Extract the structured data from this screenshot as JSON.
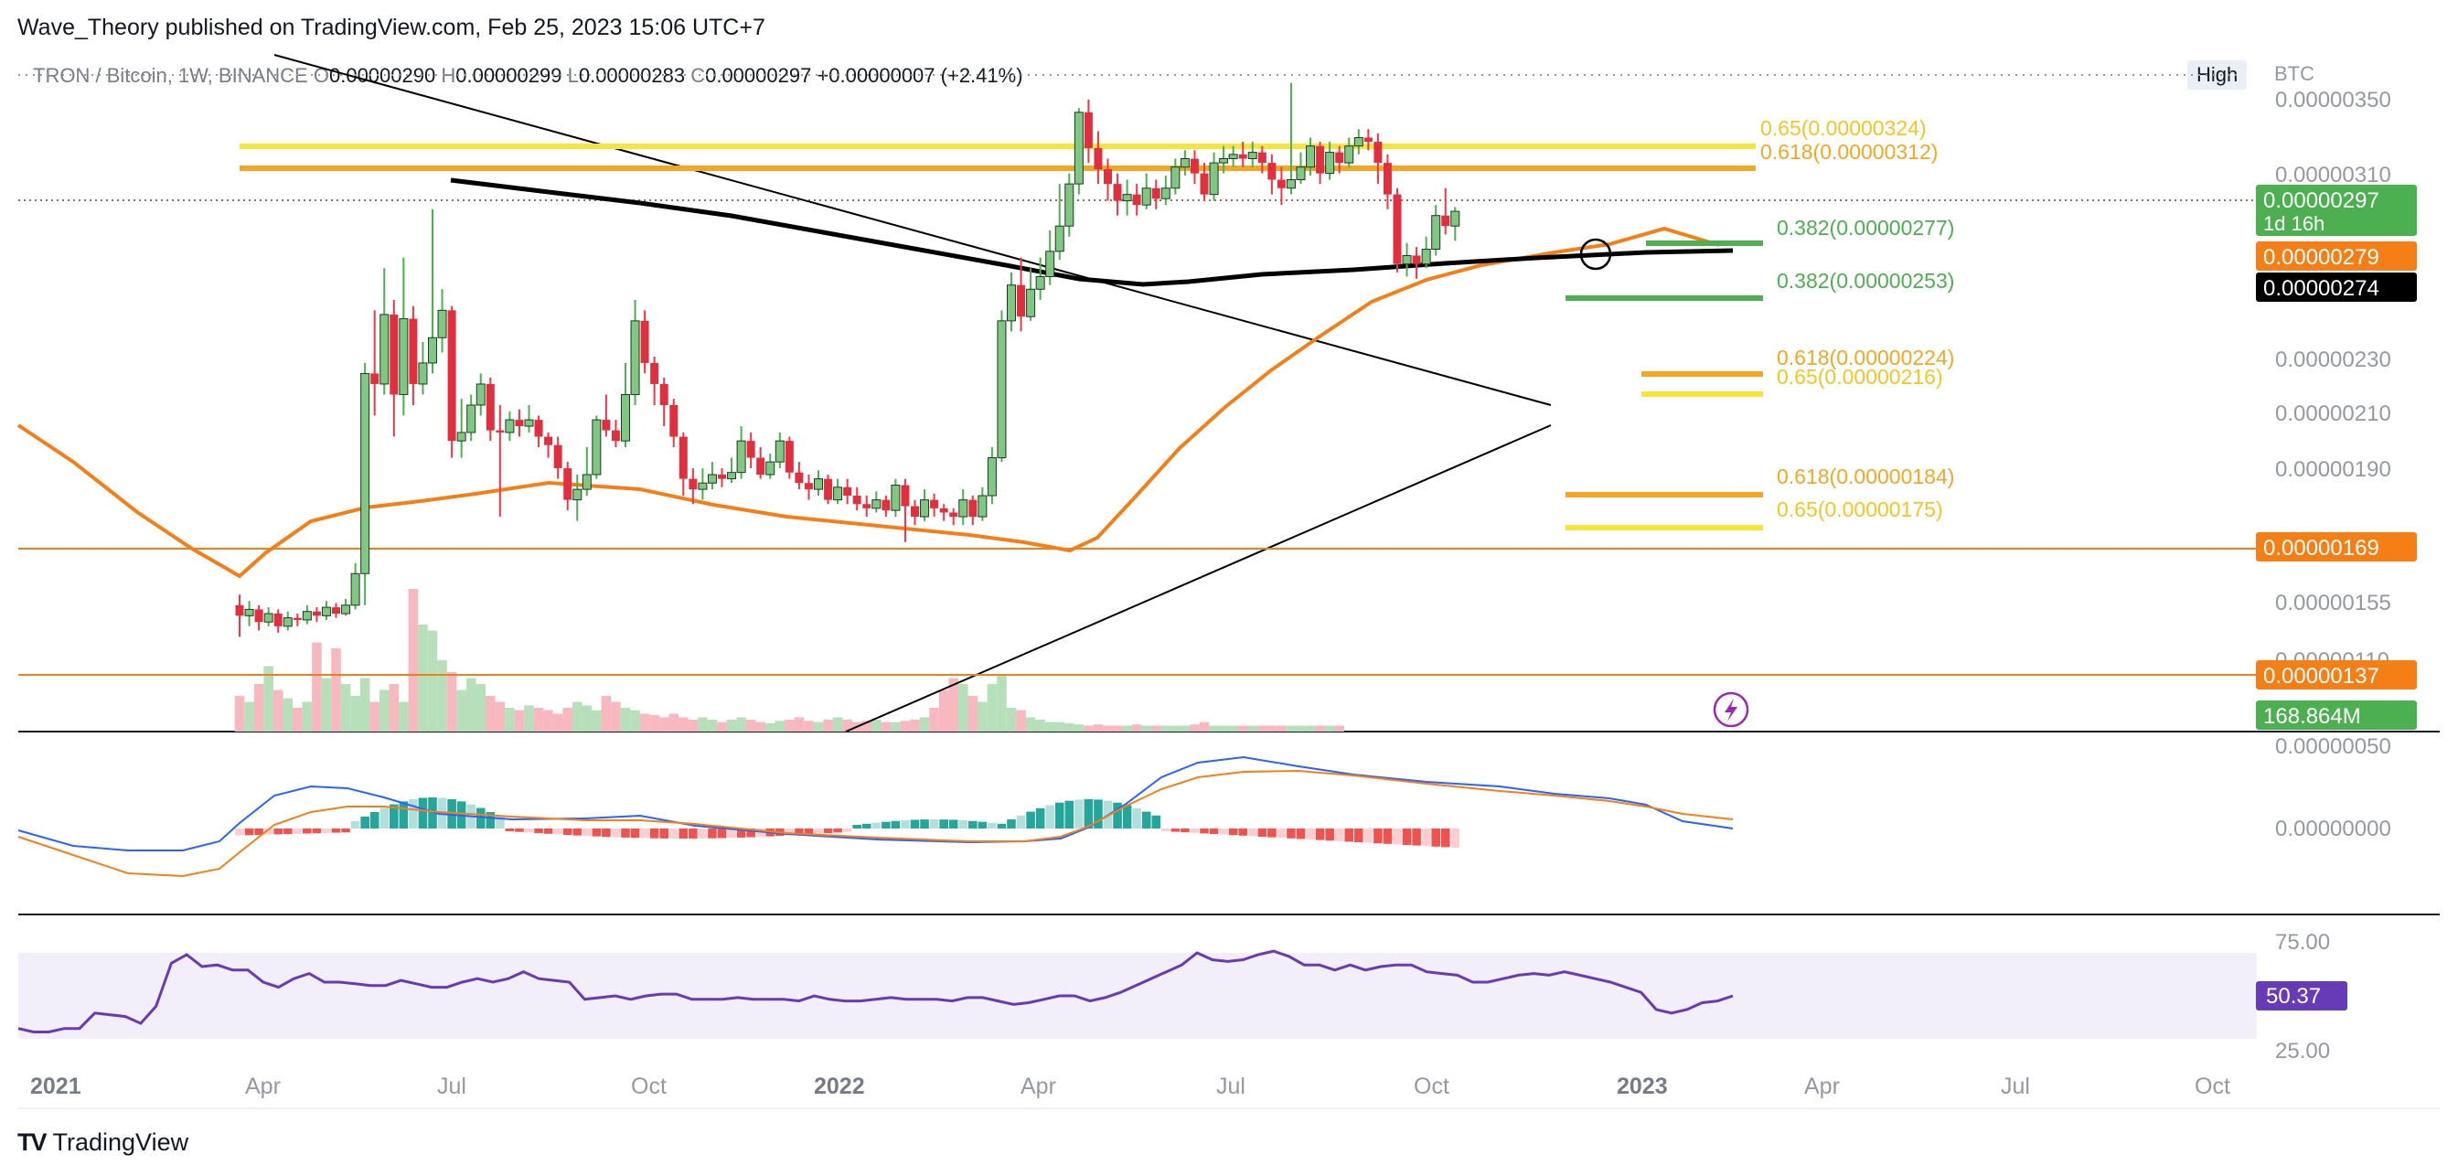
{
  "publisher": "Wave_Theory published on TradingView.com, Feb 25, 2023 15:06 UTC+7",
  "brand": {
    "logo": "TV",
    "name": "TradingView"
  },
  "symbol_line": {
    "symbol": "TRON / Bitcoin, 1W, BINANCE",
    "open_label": "O",
    "open": "0.00000290",
    "high_label": "H",
    "high": "0.00000299",
    "low_label": "L",
    "low": "0.00000283",
    "close_label": "C",
    "close": "0.00000297",
    "change": "+0.00000007 (+2.41%)"
  },
  "high_badge": "High",
  "currency": "BTC",
  "chart_data": {
    "type": "candlestick",
    "title": "TRON / Bitcoin, 1W, BINANCE",
    "y_axis_ticks": [
      "0.00000350",
      "0.00000310",
      "0.00000230",
      "0.00000210",
      "0.00000190",
      "0.00000155",
      "0.00000110",
      "0.00000050"
    ],
    "x_axis_ticks": [
      "2021",
      "Apr",
      "Jul",
      "Oct",
      "2022",
      "Apr",
      "Jul",
      "Oct",
      "2023",
      "Apr",
      "Jul",
      "Oct"
    ],
    "price_scale": {
      "max": 3.5e-06,
      "min": 5e-07
    },
    "price_labels": [
      {
        "text": "0.00000297",
        "sub": "1d 16h",
        "color": "#4caf50"
      },
      {
        "text": "0.00000279",
        "color": "#f57f17"
      },
      {
        "text": "0.00000274",
        "color": "#000000"
      },
      {
        "text": "0.00000169",
        "color": "#f57f17"
      },
      {
        "text": "0.00000137",
        "color": "#f57f17"
      },
      {
        "text": "168.864M",
        "color": "#4caf50"
      }
    ],
    "fib_levels": [
      {
        "label": "0.65(0.00000324)",
        "value": 3.24e-06,
        "color": "#f7e53b"
      },
      {
        "label": "0.618(0.00000312)",
        "value": 3.12e-06,
        "color": "#f5a623"
      },
      {
        "label": "0.382(0.00000277)",
        "value": 2.77e-06,
        "color": "#4caf50"
      },
      {
        "label": "0.382(0.00000253)",
        "value": 2.53e-06,
        "color": "#4caf50"
      },
      {
        "label": "0.618(0.00000224)",
        "value": 2.24e-06,
        "color": "#f5a623"
      },
      {
        "label": "0.65(0.00000216)",
        "value": 2.16e-06,
        "color": "#f7e53b"
      },
      {
        "label": "0.618(0.00000184)",
        "value": 1.84e-06,
        "color": "#f5a623"
      },
      {
        "label": "0.65(0.00000175)",
        "value": 1.75e-06,
        "color": "#f7e53b"
      }
    ],
    "candles": [
      {
        "o": 1.1,
        "c": 1.05,
        "h": 1.15,
        "l": 0.95
      },
      {
        "o": 1.05,
        "c": 1.08,
        "h": 1.12,
        "l": 1.0
      },
      {
        "o": 1.08,
        "c": 1.02,
        "h": 1.1,
        "l": 0.98
      },
      {
        "o": 1.02,
        "c": 1.06,
        "h": 1.09,
        "l": 1.0
      },
      {
        "o": 1.06,
        "c": 1.0,
        "h": 1.08,
        "l": 0.97
      },
      {
        "o": 1.0,
        "c": 1.04,
        "h": 1.07,
        "l": 0.98
      },
      {
        "o": 1.04,
        "c": 1.03,
        "h": 1.06,
        "l": 1.0
      },
      {
        "o": 1.03,
        "c": 1.07,
        "h": 1.1,
        "l": 1.01
      },
      {
        "o": 1.07,
        "c": 1.05,
        "h": 1.09,
        "l": 1.02
      },
      {
        "o": 1.05,
        "c": 1.09,
        "h": 1.12,
        "l": 1.03
      },
      {
        "o": 1.09,
        "c": 1.06,
        "h": 1.11,
        "l": 1.04
      },
      {
        "o": 1.06,
        "c": 1.1,
        "h": 1.13,
        "l": 1.05
      },
      {
        "o": 1.1,
        "c": 1.25,
        "h": 1.3,
        "l": 1.08
      },
      {
        "o": 1.25,
        "c": 2.2,
        "h": 2.25,
        "l": 1.1
      },
      {
        "o": 2.2,
        "c": 2.15,
        "h": 2.5,
        "l": 2.0
      },
      {
        "o": 2.15,
        "c": 2.48,
        "h": 2.7,
        "l": 2.1
      },
      {
        "o": 2.48,
        "c": 2.1,
        "h": 2.55,
        "l": 1.9
      },
      {
        "o": 2.1,
        "c": 2.46,
        "h": 2.75,
        "l": 2.0
      },
      {
        "o": 2.46,
        "c": 2.15,
        "h": 2.52,
        "l": 2.05
      },
      {
        "o": 2.15,
        "c": 2.25,
        "h": 2.35,
        "l": 2.1
      },
      {
        "o": 2.25,
        "c": 2.37,
        "h": 2.98,
        "l": 2.2
      },
      {
        "o": 2.37,
        "c": 2.5,
        "h": 2.6,
        "l": 2.3
      },
      {
        "o": 2.5,
        "c": 1.88,
        "h": 2.52,
        "l": 1.8
      },
      {
        "o": 1.88,
        "c": 1.92,
        "h": 2.08,
        "l": 1.8
      },
      {
        "o": 1.92,
        "c": 2.05,
        "h": 2.1,
        "l": 1.88
      },
      {
        "o": 2.05,
        "c": 2.15,
        "h": 2.2,
        "l": 2.0
      },
      {
        "o": 2.15,
        "c": 1.93,
        "h": 2.18,
        "l": 1.88
      },
      {
        "o": 1.93,
        "c": 1.92,
        "h": 2.05,
        "l": 1.52
      },
      {
        "o": 1.92,
        "c": 1.98,
        "h": 2.02,
        "l": 1.88
      },
      {
        "o": 1.98,
        "c": 1.95,
        "h": 2.03,
        "l": 1.9
      },
      {
        "o": 1.95,
        "c": 1.98,
        "h": 2.05,
        "l": 1.92
      },
      {
        "o": 1.98,
        "c": 1.9,
        "h": 2.0,
        "l": 1.85
      },
      {
        "o": 1.9,
        "c": 1.86,
        "h": 1.92,
        "l": 1.8
      },
      {
        "o": 1.86,
        "c": 1.75,
        "h": 1.9,
        "l": 1.7
      },
      {
        "o": 1.75,
        "c": 1.6,
        "h": 1.78,
        "l": 1.55
      },
      {
        "o": 1.6,
        "c": 1.65,
        "h": 1.72,
        "l": 1.5
      },
      {
        "o": 1.65,
        "c": 1.72,
        "h": 1.85,
        "l": 1.62
      },
      {
        "o": 1.72,
        "c": 1.98,
        "h": 2.0,
        "l": 1.7
      },
      {
        "o": 1.98,
        "c": 1.93,
        "h": 2.1,
        "l": 1.9
      },
      {
        "o": 1.93,
        "c": 1.88,
        "h": 1.98,
        "l": 1.85
      },
      {
        "o": 1.88,
        "c": 2.1,
        "h": 2.25,
        "l": 1.85
      },
      {
        "o": 2.1,
        "c": 2.45,
        "h": 2.55,
        "l": 2.05
      },
      {
        "o": 2.45,
        "c": 2.25,
        "h": 2.5,
        "l": 2.2
      },
      {
        "o": 2.25,
        "c": 2.15,
        "h": 2.28,
        "l": 2.05
      },
      {
        "o": 2.15,
        "c": 2.05,
        "h": 2.18,
        "l": 1.95
      },
      {
        "o": 2.05,
        "c": 1.9,
        "h": 2.08,
        "l": 1.85
      },
      {
        "o": 1.9,
        "c": 1.7,
        "h": 1.92,
        "l": 1.62
      },
      {
        "o": 1.7,
        "c": 1.65,
        "h": 1.75,
        "l": 1.58
      },
      {
        "o": 1.65,
        "c": 1.68,
        "h": 1.75,
        "l": 1.6
      },
      {
        "o": 1.68,
        "c": 1.72,
        "h": 1.78,
        "l": 1.65
      },
      {
        "o": 1.72,
        "c": 1.7,
        "h": 1.75,
        "l": 1.66
      },
      {
        "o": 1.7,
        "c": 1.73,
        "h": 1.8,
        "l": 1.68
      },
      {
        "o": 1.73,
        "c": 1.88,
        "h": 1.95,
        "l": 1.7
      },
      {
        "o": 1.88,
        "c": 1.8,
        "h": 1.92,
        "l": 1.75
      },
      {
        "o": 1.8,
        "c": 1.72,
        "h": 1.85,
        "l": 1.7
      },
      {
        "o": 1.72,
        "c": 1.78,
        "h": 1.82,
        "l": 1.7
      },
      {
        "o": 1.78,
        "c": 1.88,
        "h": 1.92,
        "l": 1.75
      },
      {
        "o": 1.88,
        "c": 1.73,
        "h": 1.9,
        "l": 1.7
      },
      {
        "o": 1.73,
        "c": 1.68,
        "h": 1.78,
        "l": 1.65
      },
      {
        "o": 1.68,
        "c": 1.65,
        "h": 1.72,
        "l": 1.6
      },
      {
        "o": 1.65,
        "c": 1.7,
        "h": 1.74,
        "l": 1.62
      },
      {
        "o": 1.7,
        "c": 1.6,
        "h": 1.72,
        "l": 1.58
      },
      {
        "o": 1.6,
        "c": 1.66,
        "h": 1.7,
        "l": 1.58
      },
      {
        "o": 1.66,
        "c": 1.62,
        "h": 1.7,
        "l": 1.58
      },
      {
        "o": 1.62,
        "c": 1.58,
        "h": 1.66,
        "l": 1.55
      },
      {
        "o": 1.58,
        "c": 1.56,
        "h": 1.62,
        "l": 1.52
      },
      {
        "o": 1.56,
        "c": 1.6,
        "h": 1.64,
        "l": 1.54
      },
      {
        "o": 1.6,
        "c": 1.55,
        "h": 1.62,
        "l": 1.52
      },
      {
        "o": 1.55,
        "c": 1.67,
        "h": 1.7,
        "l": 1.52
      },
      {
        "o": 1.67,
        "c": 1.57,
        "h": 1.7,
        "l": 1.4
      },
      {
        "o": 1.57,
        "c": 1.52,
        "h": 1.6,
        "l": 1.48
      },
      {
        "o": 1.52,
        "c": 1.6,
        "h": 1.65,
        "l": 1.5
      },
      {
        "o": 1.6,
        "c": 1.56,
        "h": 1.63,
        "l": 1.52
      },
      {
        "o": 1.56,
        "c": 1.54,
        "h": 1.58,
        "l": 1.5
      },
      {
        "o": 1.54,
        "c": 1.52,
        "h": 1.56,
        "l": 1.48
      },
      {
        "o": 1.52,
        "c": 1.6,
        "h": 1.65,
        "l": 1.48
      },
      {
        "o": 1.6,
        "c": 1.52,
        "h": 1.62,
        "l": 1.48
      },
      {
        "o": 1.52,
        "c": 1.62,
        "h": 1.66,
        "l": 1.5
      },
      {
        "o": 1.62,
        "c": 1.8,
        "h": 1.85,
        "l": 1.58
      },
      {
        "o": 1.8,
        "c": 2.45,
        "h": 2.5,
        "l": 1.78
      },
      {
        "o": 2.45,
        "c": 2.62,
        "h": 2.68,
        "l": 2.4
      },
      {
        "o": 2.62,
        "c": 2.47,
        "h": 2.75,
        "l": 2.4
      },
      {
        "o": 2.47,
        "c": 2.6,
        "h": 2.7,
        "l": 2.45
      },
      {
        "o": 2.6,
        "c": 2.66,
        "h": 2.75,
        "l": 2.55
      },
      {
        "o": 2.66,
        "c": 2.78,
        "h": 2.88,
        "l": 2.62
      },
      {
        "o": 2.78,
        "c": 2.9,
        "h": 3.1,
        "l": 2.74
      },
      {
        "o": 2.9,
        "c": 3.1,
        "h": 3.15,
        "l": 2.85
      },
      {
        "o": 3.1,
        "c": 3.44,
        "h": 3.46,
        "l": 3.05
      },
      {
        "o": 3.44,
        "c": 3.27,
        "h": 3.5,
        "l": 3.2
      },
      {
        "o": 3.27,
        "c": 3.17,
        "h": 3.35,
        "l": 3.1
      },
      {
        "o": 3.17,
        "c": 3.1,
        "h": 3.22,
        "l": 3.02
      },
      {
        "o": 3.1,
        "c": 3.02,
        "h": 3.15,
        "l": 2.95
      },
      {
        "o": 3.02,
        "c": 3.05,
        "h": 3.12,
        "l": 2.95
      },
      {
        "o": 3.05,
        "c": 3.0,
        "h": 3.1,
        "l": 2.95
      },
      {
        "o": 3.0,
        "c": 3.08,
        "h": 3.15,
        "l": 2.98
      },
      {
        "o": 3.08,
        "c": 3.03,
        "h": 3.12,
        "l": 2.98
      },
      {
        "o": 3.03,
        "c": 3.08,
        "h": 3.14,
        "l": 3.0
      },
      {
        "o": 3.08,
        "c": 3.18,
        "h": 3.22,
        "l": 3.05
      },
      {
        "o": 3.18,
        "c": 3.22,
        "h": 3.26,
        "l": 3.14
      },
      {
        "o": 3.22,
        "c": 3.15,
        "h": 3.26,
        "l": 3.1
      },
      {
        "o": 3.15,
        "c": 3.05,
        "h": 3.2,
        "l": 3.02
      },
      {
        "o": 3.05,
        "c": 3.2,
        "h": 3.25,
        "l": 3.02
      },
      {
        "o": 3.2,
        "c": 3.22,
        "h": 3.28,
        "l": 3.15
      },
      {
        "o": 3.22,
        "c": 3.24,
        "h": 3.28,
        "l": 3.18
      },
      {
        "o": 3.24,
        "c": 3.22,
        "h": 3.3,
        "l": 3.18
      },
      {
        "o": 3.22,
        "c": 3.25,
        "h": 3.3,
        "l": 3.18
      },
      {
        "o": 3.25,
        "c": 3.2,
        "h": 3.28,
        "l": 3.15
      },
      {
        "o": 3.2,
        "c": 3.12,
        "h": 3.24,
        "l": 3.05
      },
      {
        "o": 3.12,
        "c": 3.08,
        "h": 3.18,
        "l": 3.0
      },
      {
        "o": 3.08,
        "c": 3.12,
        "h": 3.58,
        "l": 3.05
      },
      {
        "o": 3.12,
        "c": 3.18,
        "h": 3.25,
        "l": 3.1
      },
      {
        "o": 3.18,
        "c": 3.28,
        "h": 3.32,
        "l": 3.14
      },
      {
        "o": 3.28,
        "c": 3.15,
        "h": 3.3,
        "l": 3.1
      },
      {
        "o": 3.15,
        "c": 3.25,
        "h": 3.3,
        "l": 3.12
      },
      {
        "o": 3.25,
        "c": 3.2,
        "h": 3.28,
        "l": 3.15
      },
      {
        "o": 3.2,
        "c": 3.28,
        "h": 3.32,
        "l": 3.18
      },
      {
        "o": 3.28,
        "c": 3.32,
        "h": 3.36,
        "l": 3.24
      },
      {
        "o": 3.32,
        "c": 3.3,
        "h": 3.36,
        "l": 3.26
      },
      {
        "o": 3.3,
        "c": 3.2,
        "h": 3.34,
        "l": 3.1
      },
      {
        "o": 3.2,
        "c": 3.05,
        "h": 3.24,
        "l": 2.98
      },
      {
        "o": 3.05,
        "c": 2.72,
        "h": 3.08,
        "l": 2.68
      },
      {
        "o": 2.72,
        "c": 2.76,
        "h": 2.82,
        "l": 2.66
      },
      {
        "o": 2.76,
        "c": 2.72,
        "h": 2.8,
        "l": 2.65
      },
      {
        "o": 2.72,
        "c": 2.79,
        "h": 2.85,
        "l": 2.7
      },
      {
        "o": 2.79,
        "c": 2.95,
        "h": 3.0,
        "l": 2.76
      },
      {
        "o": 2.95,
        "c": 2.9,
        "h": 3.08,
        "l": 2.86
      },
      {
        "o": 2.9,
        "c": 2.97,
        "h": 2.99,
        "l": 2.83
      }
    ],
    "volume": [
      0.3,
      0.25,
      0.4,
      0.55,
      0.35,
      0.28,
      0.2,
      0.25,
      0.75,
      0.45,
      0.7,
      0.4,
      0.3,
      0.45,
      0.25,
      0.35,
      0.4,
      0.25,
      1.2,
      0.9,
      0.85,
      0.6,
      0.5,
      0.35,
      0.45,
      0.4,
      0.3,
      0.25,
      0.2,
      0.18,
      0.22,
      0.2,
      0.18,
      0.15,
      0.2,
      0.25,
      0.22,
      0.18,
      0.3,
      0.25,
      0.2,
      0.18,
      0.15,
      0.14,
      0.12,
      0.15,
      0.12,
      0.1,
      0.12,
      0.1,
      0.08,
      0.1,
      0.12,
      0.1,
      0.08,
      0.07,
      0.09,
      0.1,
      0.12,
      0.09,
      0.08,
      0.1,
      0.12,
      0.1,
      0.08,
      0.09,
      0.1,
      0.08,
      0.08,
      0.09,
      0.1,
      0.12,
      0.2,
      0.35,
      0.45,
      0.4,
      0.3,
      0.25,
      0.4,
      0.48,
      0.2,
      0.18,
      0.12,
      0.1,
      0.08,
      0.08,
      0.07,
      0.06,
      0.05,
      0.06,
      0.05,
      0.05,
      0.05,
      0.06,
      0.05,
      0.05,
      0.05,
      0.05,
      0.05,
      0.06,
      0.08,
      0.05,
      0.05,
      0.05,
      0.05,
      0.05,
      0.05,
      0.05,
      0.05,
      0.05,
      0.05,
      0.05,
      0.05,
      0.05,
      0.05
    ],
    "rsi": {
      "ticks": [
        "75.00",
        "25.00"
      ],
      "current": "50.37",
      "values": [
        31,
        29,
        29,
        31,
        31,
        40,
        39,
        38,
        34,
        44,
        69,
        74,
        67,
        68,
        65,
        65,
        58,
        55,
        60,
        63,
        58,
        58,
        57,
        56,
        56,
        59,
        57,
        55,
        55,
        58,
        60,
        58,
        60,
        64,
        60,
        59,
        58,
        48,
        49,
        50,
        48,
        50,
        51,
        51,
        48,
        48,
        48,
        49,
        48,
        48,
        48,
        47,
        50,
        48,
        47,
        47,
        48,
        49,
        48,
        48,
        48,
        47,
        49,
        49,
        47,
        45,
        46,
        48,
        50,
        50,
        47,
        49,
        52,
        56,
        60,
        64,
        68,
        75,
        71,
        70,
        71,
        74,
        76,
        73,
        68,
        68,
        65,
        68,
        65,
        67,
        68,
        68,
        64,
        63,
        62,
        58,
        58,
        60,
        62,
        63,
        62,
        64,
        62,
        60,
        58,
        55,
        52,
        42,
        40,
        42,
        46,
        47,
        50
      ]
    },
    "macd": {
      "zero_tick": "0.00000000"
    }
  }
}
